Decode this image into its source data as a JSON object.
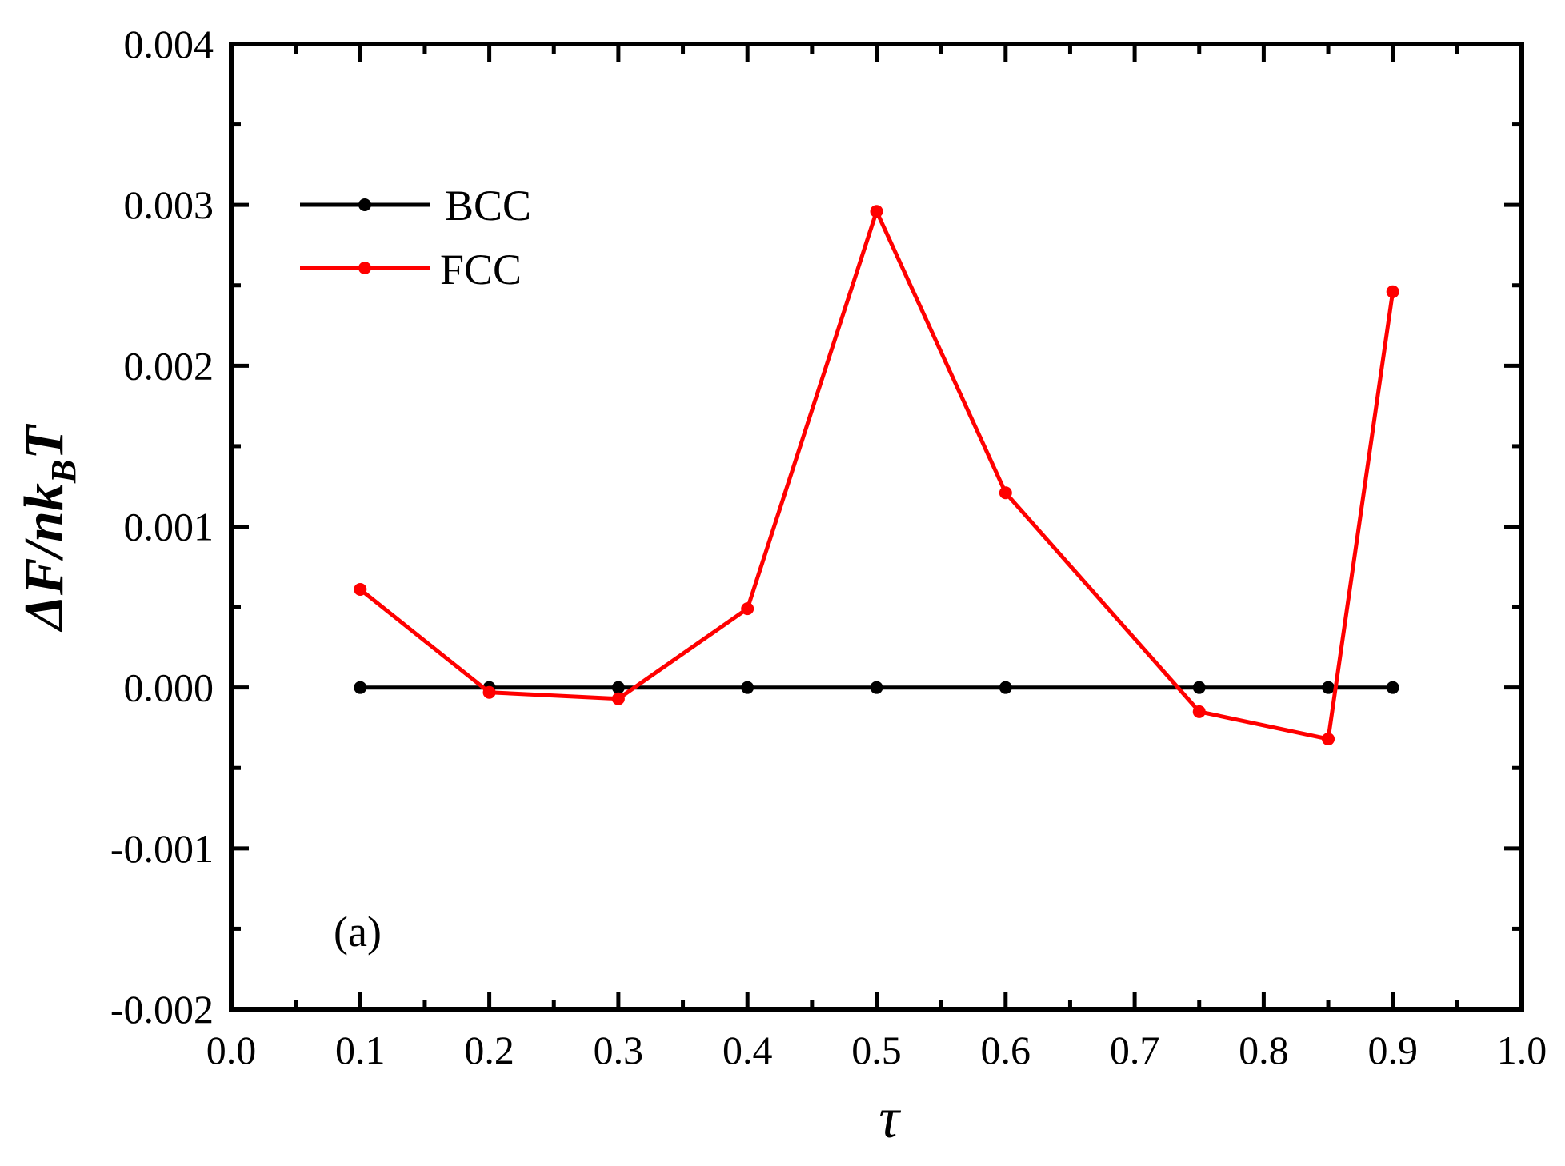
{
  "chart_data": {
    "type": "line",
    "title": "",
    "xlabel": "τ",
    "ylabel": {
      "prefix": "ΔF/nk",
      "subscript": "B",
      "suffix": "T"
    },
    "xlim": [
      0.0,
      1.0
    ],
    "ylim": [
      -0.002,
      0.004
    ],
    "x_ticks": [
      "0.0",
      "0.1",
      "0.2",
      "0.3",
      "0.4",
      "0.5",
      "0.6",
      "0.7",
      "0.8",
      "0.9",
      "1.0"
    ],
    "y_ticks": [
      "-0.002",
      "-0.001",
      "0.000",
      "0.001",
      "0.002",
      "0.003",
      "0.004"
    ],
    "x_tick_values": [
      0.0,
      0.1,
      0.2,
      0.3,
      0.4,
      0.5,
      0.6,
      0.7,
      0.8,
      0.9,
      1.0
    ],
    "y_tick_values": [
      -0.002,
      -0.001,
      0.0,
      0.001,
      0.002,
      0.003,
      0.004
    ],
    "grid": false,
    "legend_position": "top-left",
    "annotation": "(a)",
    "series": [
      {
        "name": "BCC",
        "color": "#000000",
        "x": [
          0.1,
          0.2,
          0.3,
          0.4,
          0.5,
          0.6,
          0.75,
          0.85,
          0.9
        ],
        "y": [
          0.0,
          0.0,
          0.0,
          0.0,
          0.0,
          0.0,
          0.0,
          0.0,
          0.0
        ]
      },
      {
        "name": "FCC",
        "color": "#ff0000",
        "x": [
          0.1,
          0.2,
          0.3,
          0.4,
          0.5,
          0.6,
          0.75,
          0.85,
          0.9
        ],
        "y": [
          0.00061,
          -3e-05,
          -7e-05,
          0.00049,
          0.00296,
          0.00121,
          -0.00015,
          -0.00032,
          0.00246
        ]
      }
    ]
  }
}
